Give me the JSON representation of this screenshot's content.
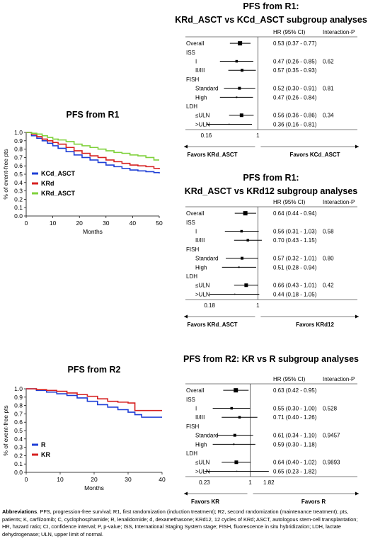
{
  "chart_data": [
    {
      "type": "line",
      "title": "PFS from R1",
      "xlabel": "Months",
      "ylabel": "% of event-free pts",
      "xlim": [
        0,
        50
      ],
      "ylim": [
        0,
        1.0
      ],
      "xticks": [
        0,
        10,
        20,
        30,
        40,
        50
      ],
      "yticks": [
        0,
        0.1,
        0.2,
        0.3,
        0.4,
        0.5,
        0.6,
        0.7,
        0.8,
        0.9,
        1.0
      ],
      "legend_position": "bottom-left",
      "series": [
        {
          "name": "KCd_ASCT",
          "color": "#1f3fd6",
          "x": [
            0,
            2,
            4,
            6,
            8,
            10,
            12,
            15,
            18,
            21,
            24,
            27,
            30,
            33,
            36,
            39,
            42,
            45,
            48,
            50
          ],
          "y": [
            1.0,
            0.96,
            0.93,
            0.9,
            0.87,
            0.84,
            0.81,
            0.77,
            0.73,
            0.7,
            0.67,
            0.64,
            0.61,
            0.59,
            0.57,
            0.55,
            0.54,
            0.53,
            0.52,
            0.51
          ]
        },
        {
          "name": "KRd",
          "color": "#d62020",
          "x": [
            0,
            2,
            4,
            6,
            8,
            10,
            12,
            15,
            18,
            21,
            24,
            27,
            30,
            33,
            36,
            39,
            42,
            45,
            48,
            50
          ],
          "y": [
            1.0,
            0.98,
            0.95,
            0.92,
            0.9,
            0.88,
            0.86,
            0.82,
            0.78,
            0.75,
            0.72,
            0.7,
            0.67,
            0.65,
            0.63,
            0.61,
            0.6,
            0.59,
            0.57,
            0.56
          ]
        },
        {
          "name": "KRd_ASCT",
          "color": "#7fd13b",
          "x": [
            0,
            2,
            4,
            6,
            8,
            10,
            12,
            15,
            18,
            21,
            24,
            27,
            30,
            33,
            36,
            39,
            42,
            45,
            48,
            50
          ],
          "y": [
            1.0,
            0.99,
            0.98,
            0.96,
            0.94,
            0.92,
            0.91,
            0.89,
            0.86,
            0.84,
            0.82,
            0.8,
            0.78,
            0.76,
            0.75,
            0.73,
            0.72,
            0.7,
            0.67,
            0.67
          ]
        }
      ]
    },
    {
      "type": "line",
      "title": "PFS from R2",
      "xlabel": "Months",
      "ylabel": "% of event-free pts",
      "xlim": [
        0,
        40
      ],
      "ylim": [
        0,
        1.0
      ],
      "xticks": [
        0,
        10,
        20,
        30,
        40
      ],
      "yticks": [
        0,
        0.1,
        0.2,
        0.3,
        0.4,
        0.5,
        0.6,
        0.7,
        0.8,
        0.9,
        1.0
      ],
      "legend_position": "bottom-left",
      "series": [
        {
          "name": "R",
          "color": "#1f3fd6",
          "x": [
            0,
            3,
            6,
            9,
            12,
            15,
            18,
            21,
            24,
            27,
            30,
            32,
            34,
            36,
            38,
            40
          ],
          "y": [
            1.0,
            0.98,
            0.96,
            0.94,
            0.92,
            0.89,
            0.85,
            0.81,
            0.78,
            0.75,
            0.72,
            0.69,
            0.66,
            0.66,
            0.66,
            0.66
          ]
        },
        {
          "name": "KR",
          "color": "#d62020",
          "x": [
            0,
            3,
            6,
            9,
            12,
            15,
            18,
            21,
            24,
            27,
            30,
            32,
            34,
            36,
            38,
            40
          ],
          "y": [
            1.0,
            0.99,
            0.98,
            0.97,
            0.95,
            0.93,
            0.91,
            0.88,
            0.85,
            0.84,
            0.83,
            0.74,
            0.74,
            0.74,
            0.74,
            0.74
          ]
        }
      ]
    },
    {
      "type": "forest",
      "title_line1": "PFS from R1:",
      "title_line2": "KRd_ASCT vs KCd_ASCT subgroup analyses",
      "col_hr": "HR (95% CI)",
      "col_int": "Interaction-P",
      "x_scale": "log",
      "xlim": [
        0.12,
        2.0
      ],
      "ticks": [
        {
          "v": 0.16,
          "label": "0.16"
        },
        {
          "v": 1,
          "label": "1"
        }
      ],
      "favors_left": "Favors KRd_ASCT",
      "favors_right": "Favors KCd_ASCT",
      "rows": [
        {
          "label": "Overall",
          "hr": 0.53,
          "lo": 0.37,
          "hi": 0.77,
          "text": "0.53 (0.37 - 0.77)",
          "p": "",
          "size": 6,
          "indent": false
        },
        {
          "label": "ISS",
          "header": true
        },
        {
          "label": "I",
          "hr": 0.47,
          "lo": 0.26,
          "hi": 0.85,
          "text": "0.47 (0.26 - 0.85)",
          "p": "0.62",
          "size": 3.5,
          "indent": true
        },
        {
          "label": "II/III",
          "hr": 0.57,
          "lo": 0.35,
          "hi": 0.93,
          "text": "0.57 (0.35 - 0.93)",
          "p": "",
          "size": 4,
          "indent": true
        },
        {
          "label": "FISH",
          "header": true
        },
        {
          "label": "Standard",
          "hr": 0.52,
          "lo": 0.3,
          "hi": 0.91,
          "text": "0.52 (0.30 - 0.91)",
          "p": "0.81",
          "size": 4,
          "indent": true
        },
        {
          "label": "High",
          "hr": 0.47,
          "lo": 0.26,
          "hi": 0.84,
          "text": "0.47 (0.26 - 0.84)",
          "p": "",
          "size": 2,
          "indent": true
        },
        {
          "label": "LDH",
          "header": true
        },
        {
          "label": "≤ULN",
          "hr": 0.56,
          "lo": 0.36,
          "hi": 0.86,
          "text": "0.56 (0.36 - 0.86)",
          "p": "0.34",
          "size": 5,
          "indent": true
        },
        {
          "label": ">ULN",
          "hr": 0.36,
          "lo": 0.16,
          "hi": 0.81,
          "text": "0.36 (0.16 - 0.81)",
          "p": "",
          "size": 1.5,
          "indent": true
        }
      ]
    },
    {
      "type": "forest",
      "title_line1": "PFS from R1:",
      "title_line2": "KRd_ASCT vs KRd12 subgroup analyses",
      "col_hr": "HR (95% CI)",
      "col_int": "Interaction-P",
      "x_scale": "log",
      "xlim": [
        0.12,
        2.0
      ],
      "ticks": [
        {
          "v": 0.18,
          "label": "0.18"
        },
        {
          "v": 1,
          "label": "1"
        }
      ],
      "favors_left": "Favors KRd_ASCT",
      "favors_right": "Favors KRd12",
      "rows": [
        {
          "label": "Overall",
          "hr": 0.64,
          "lo": 0.44,
          "hi": 0.94,
          "text": "0.64 (0.44 - 0.94)",
          "p": "",
          "size": 6,
          "indent": false
        },
        {
          "label": "ISS",
          "header": true
        },
        {
          "label": "I",
          "hr": 0.56,
          "lo": 0.31,
          "hi": 1.03,
          "text": "0.56 (0.31 - 1.03)",
          "p": "0.58",
          "size": 3.5,
          "indent": true
        },
        {
          "label": "II/III",
          "hr": 0.7,
          "lo": 0.43,
          "hi": 1.15,
          "text": "0.70 (0.43 - 1.15)",
          "p": "",
          "size": 3.5,
          "indent": true
        },
        {
          "label": "FISH",
          "header": true
        },
        {
          "label": "Standard",
          "hr": 0.57,
          "lo": 0.32,
          "hi": 1.01,
          "text": "0.57 (0.32 - 1.01)",
          "p": "0.80",
          "size": 4,
          "indent": true
        },
        {
          "label": "High",
          "hr": 0.51,
          "lo": 0.28,
          "hi": 0.94,
          "text": "0.51 (0.28 - 0.94)",
          "p": "",
          "size": 2,
          "indent": true
        },
        {
          "label": "LDH",
          "header": true
        },
        {
          "label": "≤ULN",
          "hr": 0.66,
          "lo": 0.43,
          "hi": 1.01,
          "text": "0.66 (0.43 - 1.01)",
          "p": "0.42",
          "size": 5,
          "indent": true
        },
        {
          "label": ">ULN",
          "hr": 0.44,
          "lo": 0.18,
          "hi": 1.05,
          "text": "0.44 (0.18 - 1.05)",
          "p": "",
          "size": 1.5,
          "indent": true
        }
      ]
    },
    {
      "type": "forest",
      "title_line1": "PFS from R2: KR vs R subgroup analyses",
      "title_line2": "",
      "col_hr": "HR (95% CI)",
      "col_int": "Interaction-P",
      "x_scale": "log",
      "xlim": [
        0.16,
        2.4
      ],
      "ticks": [
        {
          "v": 0.23,
          "label": "0.23"
        },
        {
          "v": 1,
          "label": "1"
        },
        {
          "v": 1.82,
          "label": "1.82"
        }
      ],
      "favors_left": "Favors KR",
      "favors_right": "Favors R",
      "rows": [
        {
          "label": "Overall",
          "hr": 0.63,
          "lo": 0.42,
          "hi": 0.95,
          "text": "0.63 (0.42 - 0.95)",
          "p": "",
          "size": 6,
          "indent": false
        },
        {
          "label": "ISS",
          "header": true
        },
        {
          "label": "I",
          "hr": 0.55,
          "lo": 0.3,
          "hi": 1.0,
          "text": "0.55 (0.30 - 1.00)",
          "p": "0.528",
          "size": 3.5,
          "indent": true
        },
        {
          "label": "II/III",
          "hr": 0.71,
          "lo": 0.4,
          "hi": 1.26,
          "text": "0.71 (0.40 - 1.26)",
          "p": "",
          "size": 3.5,
          "indent": true
        },
        {
          "label": "FISH",
          "header": true
        },
        {
          "label": "Standard",
          "hr": 0.61,
          "lo": 0.34,
          "hi": 1.1,
          "text": "0.61 (0.34 - 1.10)",
          "p": "0.9457",
          "size": 4,
          "indent": true
        },
        {
          "label": "High",
          "hr": 0.59,
          "lo": 0.3,
          "hi": 1.18,
          "text": "0.59 (0.30 - 1.18)",
          "p": "",
          "size": 2,
          "indent": true
        },
        {
          "label": "LDH",
          "header": true
        },
        {
          "label": "≤ULN",
          "hr": 0.64,
          "lo": 0.4,
          "hi": 1.02,
          "text": "0.64 (0.40 - 1.02)",
          "p": "0.9893",
          "size": 5,
          "indent": true
        },
        {
          "label": ">ULN",
          "hr": 0.65,
          "lo": 0.23,
          "hi": 1.82,
          "text": "0.65 (0.23 - 1.82)",
          "p": "",
          "size": 1.5,
          "indent": true
        }
      ]
    }
  ],
  "abbreviations": {
    "heading": "Abbreviations",
    "text": ". PFS, progression-free survival; R1, first randomization (induction treatment); R2, second randomization (maintenance treatment); pts, patients; K, carfilzomib; C, cyclophosphamide; R, lenalidomide; d, dexamethasone; KRd12, 12 cycles of KRd; ASCT, autologous stem-cell transplantation; HR, hazard ratio; CI, confidence interval; P, p-value; ISS, International Staging System stage; FISH, fluorescence in situ hybridization; LDH, lactate dehydrogenase; ULN, upper limit of normal."
  }
}
